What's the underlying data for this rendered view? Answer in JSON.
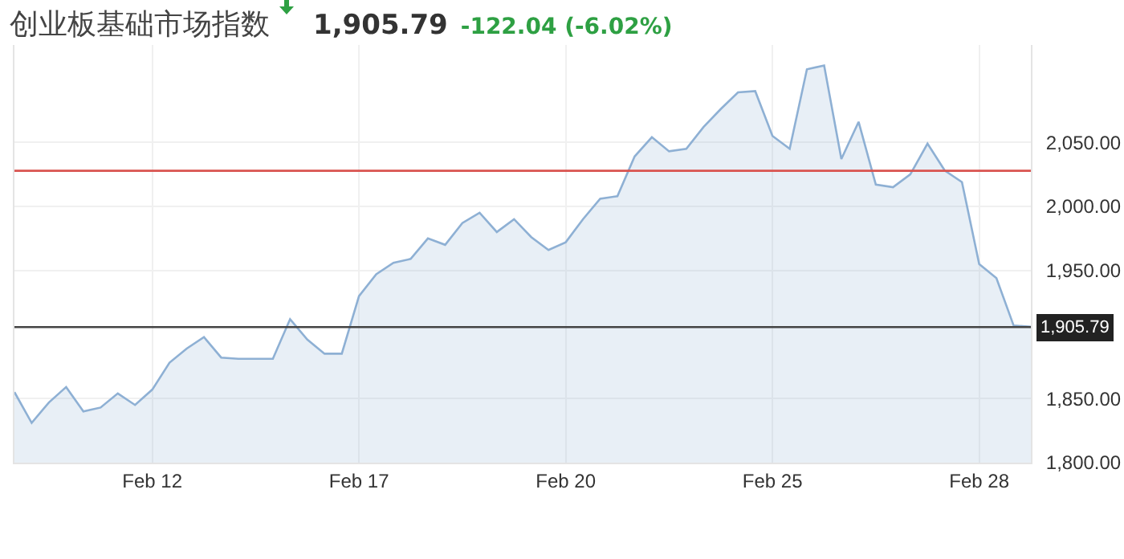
{
  "chart_data": {
    "type": "area",
    "title": "创业板基础市场指数",
    "subtitle": "1,905.79",
    "annotations": [
      "-122.04 (-6.02%)"
    ],
    "categories": [
      null,
      null,
      null,
      null,
      null,
      null,
      null,
      null,
      "Feb 12",
      null,
      null,
      null,
      null,
      null,
      null,
      null,
      null,
      null,
      null,
      null,
      "Feb 17",
      null,
      null,
      null,
      null,
      null,
      null,
      null,
      null,
      null,
      null,
      null,
      "Feb 20",
      null,
      null,
      null,
      null,
      null,
      null,
      null,
      null,
      null,
      null,
      null,
      "Feb 25",
      null,
      null,
      null,
      null,
      null,
      null,
      null,
      null,
      null,
      null,
      null,
      "Feb 28",
      null,
      null,
      null
    ],
    "series": [
      {
        "color": "#8eb0d4",
        "values": [
          1855,
          1831,
          1847,
          1859,
          1840,
          1843,
          1854,
          1845,
          1857,
          1878,
          1889,
          1898,
          1882,
          1881,
          1881,
          1881,
          1912,
          1896,
          1885,
          1885,
          1930,
          1947,
          1956,
          1959,
          1975,
          1970,
          1987,
          1995,
          1980,
          1990,
          1976,
          1966,
          1972,
          1990,
          2006,
          2008,
          2039,
          2054,
          2043,
          2045,
          2062,
          2076,
          2089,
          2090,
          2055,
          2045,
          2107,
          2110,
          2037,
          2066,
          2017,
          2015,
          2025,
          2049,
          2028,
          2019,
          1955,
          1944,
          1907,
          1906
        ]
      }
    ],
    "ylim": [
      1800,
      2126
    ],
    "yticks": [
      {
        "value": 1800,
        "label": "1,800.00"
      },
      {
        "value": 1850,
        "label": "1,850.00"
      },
      {
        "value": 1950,
        "label": "1,950.00"
      },
      {
        "value": 2000,
        "label": "2,000.00"
      },
      {
        "value": 2050,
        "label": "2,050.00"
      }
    ],
    "ref_lines": [
      {
        "axis": "y",
        "value": 2027.83,
        "color": "#d9534f"
      },
      {
        "axis": "y",
        "value": 1905.79,
        "label": "1,905.79",
        "color": "#444444"
      }
    ],
    "grid": true,
    "legend": false,
    "marker": "none",
    "line_style": "solid"
  }
}
